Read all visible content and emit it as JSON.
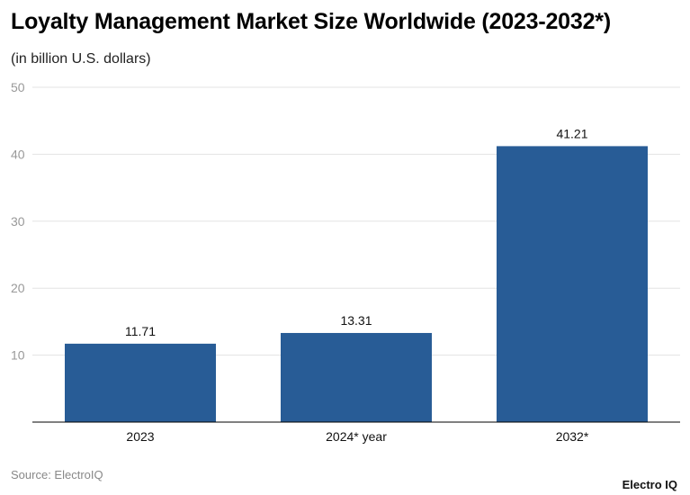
{
  "chart_data": {
    "type": "bar",
    "title": "Loyalty Management Market Size Worldwide (2023-2032*)",
    "subtitle": "(in billion U.S. dollars)",
    "categories": [
      "2023",
      "2024* year",
      "2032*"
    ],
    "values": [
      11.71,
      13.31,
      41.21
    ],
    "value_labels": [
      "11.71",
      "13.31",
      "41.21"
    ],
    "ylim": [
      0,
      50
    ],
    "yticks": [
      10,
      20,
      30,
      40,
      50
    ],
    "xlabel": "",
    "ylabel": "",
    "grid": true,
    "bar_color": "#285c96"
  },
  "footer": {
    "source": "Source: ElectroIQ",
    "brand": "Electro IQ"
  }
}
